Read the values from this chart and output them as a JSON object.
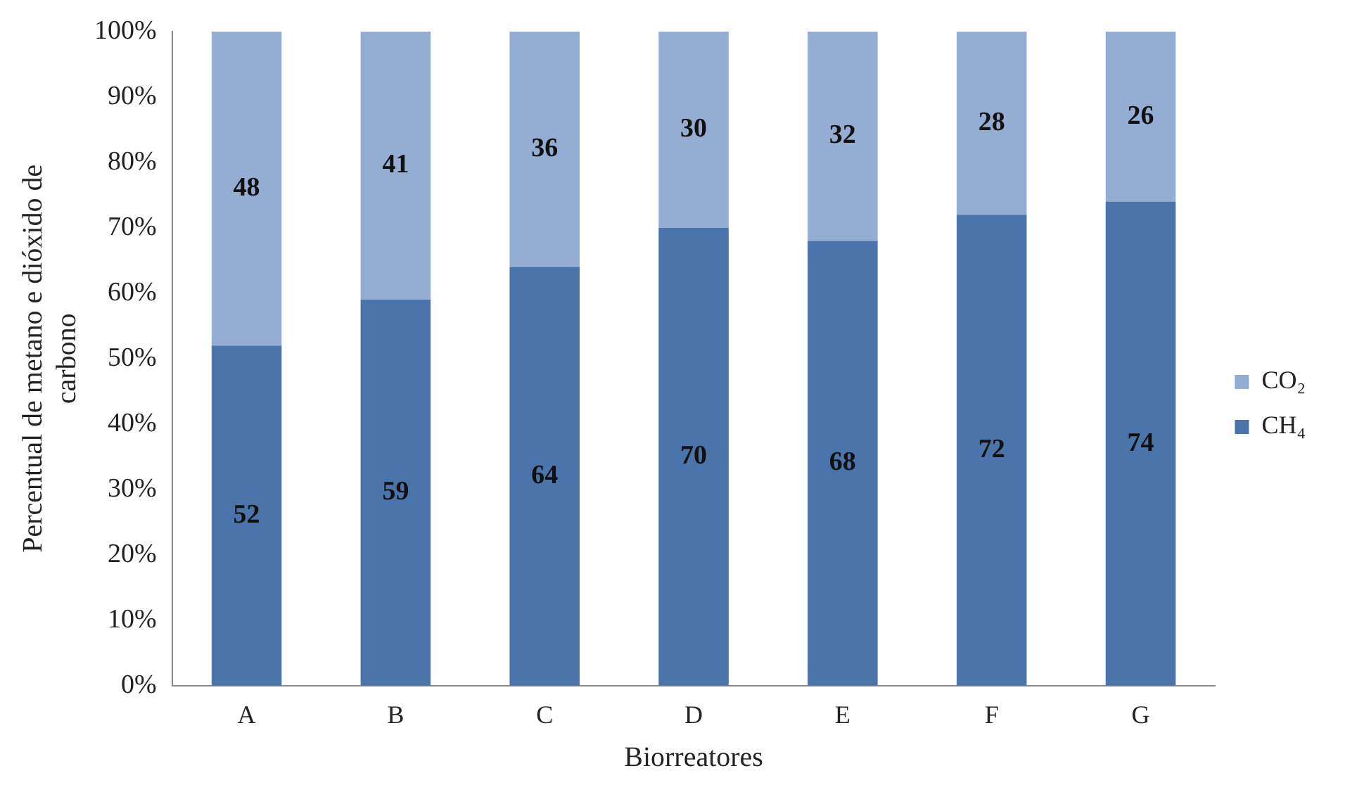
{
  "chart_data": {
    "type": "bar",
    "stacked": true,
    "xlabel": "Biorreatores",
    "ylabel": "Percentual de metano e dióxido de carbono",
    "categories": [
      "A",
      "B",
      "C",
      "D",
      "E",
      "F",
      "G"
    ],
    "series": [
      {
        "name": "CH₄",
        "color": "#4a74aa",
        "values": [
          52,
          59,
          64,
          70,
          68,
          72,
          74
        ]
      },
      {
        "name": "CO₂",
        "color": "#94aed3",
        "values": [
          48,
          41,
          36,
          30,
          32,
          28,
          26
        ]
      }
    ],
    "ylim": [
      0,
      100
    ],
    "yticks": [
      {
        "value": 0,
        "label": "0%"
      },
      {
        "value": 10,
        "label": "10%"
      },
      {
        "value": 20,
        "label": "20%"
      },
      {
        "value": 30,
        "label": "30%"
      },
      {
        "value": 40,
        "label": "40%"
      },
      {
        "value": 50,
        "label": "50%"
      },
      {
        "value": 60,
        "label": "60%"
      },
      {
        "value": 70,
        "label": "70%"
      },
      {
        "value": 80,
        "label": "80%"
      },
      {
        "value": 90,
        "label": "90%"
      },
      {
        "value": 100,
        "label": "100%"
      }
    ],
    "grid": false,
    "legend": "right",
    "data_labels": true
  }
}
